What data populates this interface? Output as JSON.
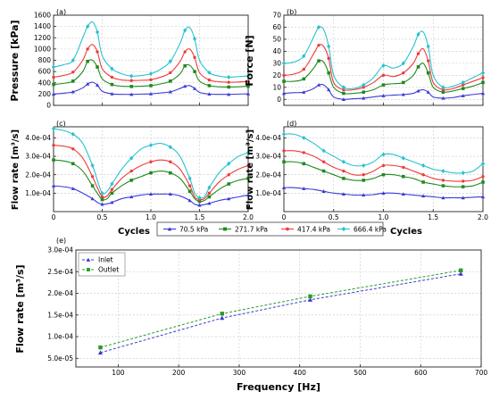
{
  "colors": {
    "s70": "#3a3ad6",
    "s271": "#1f8a1f",
    "s417": "#f03a3a",
    "s666": "#27c3cf",
    "grid": "#c8c8c8",
    "inlet": "#3a3ad6",
    "outlet": "#2a9a2a"
  },
  "series_legend": [
    {
      "key": "s70",
      "label": "70.5 kPa",
      "marker": "triangle"
    },
    {
      "key": "s271",
      "label": "271.7 kPa",
      "marker": "square"
    },
    {
      "key": "s417",
      "label": "417.4 kPa",
      "marker": "circle"
    },
    {
      "key": "s666",
      "label": "666.4 kPa",
      "marker": "diamond"
    }
  ],
  "chart_data": [
    {
      "id": "a",
      "panel_label": "(a)",
      "type": "line",
      "xlabel": "",
      "ylabel": "Pressure [kPa]",
      "xlim": [
        0,
        2
      ],
      "ylim": [
        0,
        1600
      ],
      "xticks": [
        "0",
        "0.5",
        "1.0",
        "1.5",
        "2.0"
      ],
      "xtick_values": [
        0,
        0.5,
        1,
        1.5,
        2
      ],
      "show_xticklabels": false,
      "yticks": [
        "0",
        "200",
        "400",
        "600",
        "800",
        "1000",
        "1200",
        "1400",
        "1600"
      ],
      "ytick_values": [
        0,
        200,
        400,
        600,
        800,
        1000,
        1200,
        1400,
        1600
      ],
      "grid": true,
      "x": [
        0,
        0.1,
        0.2,
        0.3,
        0.35,
        0.4,
        0.45,
        0.5,
        0.6,
        0.7,
        0.8,
        0.9,
        1.0,
        1.1,
        1.2,
        1.3,
        1.35,
        1.4,
        1.45,
        1.5,
        1.6,
        1.7,
        1.8,
        1.9,
        2.0
      ],
      "series": [
        {
          "key": "s70",
          "values": [
            200,
            215,
            240,
            310,
            380,
            410,
            360,
            250,
            205,
            195,
            195,
            200,
            205,
            220,
            240,
            300,
            340,
            350,
            300,
            230,
            200,
            195,
            195,
            200,
            205
          ]
        },
        {
          "key": "s271",
          "values": [
            370,
            390,
            430,
            600,
            780,
            800,
            680,
            470,
            370,
            340,
            335,
            340,
            350,
            380,
            430,
            560,
            700,
            710,
            600,
            430,
            350,
            330,
            325,
            330,
            340
          ]
        },
        {
          "key": "s417",
          "values": [
            500,
            530,
            590,
            800,
            1000,
            1080,
            950,
            650,
            500,
            450,
            440,
            445,
            455,
            500,
            580,
            780,
            950,
            1000,
            850,
            580,
            450,
            420,
            410,
            415,
            425
          ]
        },
        {
          "key": "s666",
          "values": [
            680,
            720,
            800,
            1200,
            1400,
            1480,
            1300,
            880,
            650,
            560,
            520,
            530,
            560,
            640,
            780,
            1100,
            1330,
            1380,
            1180,
            800,
            580,
            520,
            500,
            510,
            520
          ]
        }
      ]
    },
    {
      "id": "b",
      "panel_label": "(b)",
      "type": "line",
      "xlabel": "",
      "ylabel": "Force [N]",
      "xlim": [
        0,
        2
      ],
      "ylim": [
        -5,
        70
      ],
      "xticks": [
        "0",
        "0.5",
        "1.0",
        "1.5",
        "2.0"
      ],
      "xtick_values": [
        0,
        0.5,
        1,
        1.5,
        2
      ],
      "show_xticklabels": false,
      "yticks": [
        "0",
        "10",
        "20",
        "30",
        "40",
        "50",
        "60",
        "70"
      ],
      "ytick_values": [
        0,
        10,
        20,
        30,
        40,
        50,
        60,
        70
      ],
      "grid": true,
      "x": [
        0,
        0.1,
        0.2,
        0.3,
        0.35,
        0.4,
        0.45,
        0.5,
        0.6,
        0.7,
        0.8,
        0.9,
        1.0,
        1.1,
        1.2,
        1.3,
        1.35,
        1.4,
        1.45,
        1.5,
        1.6,
        1.7,
        1.8,
        1.9,
        2.0
      ],
      "series": [
        {
          "key": "s70",
          "values": [
            5,
            5.5,
            6,
            9,
            12,
            12,
            8,
            2,
            0,
            0.5,
            1,
            2,
            3,
            3.5,
            4,
            5,
            7,
            8,
            6,
            2,
            1,
            1.5,
            3,
            4,
            5
          ]
        },
        {
          "key": "s271",
          "values": [
            15,
            15,
            17,
            26,
            32,
            31,
            22,
            10,
            5,
            5,
            6,
            8,
            12,
            13,
            14,
            20,
            27,
            30,
            22,
            10,
            6,
            7,
            9,
            11,
            14
          ]
        },
        {
          "key": "s417",
          "values": [
            20,
            21,
            25,
            38,
            45,
            44,
            34,
            14,
            8,
            8,
            10,
            14,
            20,
            19,
            22,
            30,
            38,
            42,
            32,
            14,
            8,
            9,
            12,
            15,
            18
          ]
        },
        {
          "key": "s666",
          "values": [
            30,
            31,
            36,
            52,
            60,
            58,
            44,
            20,
            10,
            9,
            12,
            18,
            28,
            26,
            30,
            44,
            54,
            56,
            44,
            20,
            10,
            11,
            14,
            18,
            22
          ]
        }
      ]
    },
    {
      "id": "c",
      "panel_label": "(c)",
      "type": "line",
      "xlabel": "",
      "ylabel": "Flow rate [m³/s]",
      "xlim": [
        0,
        2
      ],
      "ylim": [
        0,
        0.00046
      ],
      "xticks": [
        "0",
        "0.5",
        "1.0",
        "1.5",
        "2.0"
      ],
      "xtick_values": [
        0,
        0.5,
        1,
        1.5,
        2
      ],
      "show_xticklabels": true,
      "yticks": [
        "1.0e-04",
        "2.0e-04",
        "3.0e-04",
        "4.0e-04"
      ],
      "ytick_values": [
        0.0001,
        0.0002,
        0.0003,
        0.0004
      ],
      "grid": true,
      "x": [
        0,
        0.1,
        0.2,
        0.3,
        0.4,
        0.45,
        0.5,
        0.55,
        0.6,
        0.7,
        0.8,
        0.9,
        1.0,
        1.1,
        1.2,
        1.3,
        1.4,
        1.45,
        1.5,
        1.55,
        1.6,
        1.7,
        1.8,
        1.9,
        2.0
      ],
      "series": [
        {
          "key": "s70",
          "values": [
            0.00014,
            0.000135,
            0.000125,
            0.0001,
            7e-05,
            5e-05,
            4e-05,
            4.2e-05,
            5e-05,
            7e-05,
            8e-05,
            9e-05,
            9.5e-05,
            9.5e-05,
            9.5e-05,
            8.5e-05,
            6e-05,
            4e-05,
            3.5e-05,
            3.8e-05,
            4.5e-05,
            6e-05,
            7e-05,
            8e-05,
            9e-05
          ]
        },
        {
          "key": "s271",
          "values": [
            0.00028,
            0.000275,
            0.00026,
            0.00022,
            0.00014,
            0.0001,
            6.5e-05,
            7e-05,
            0.0001,
            0.00014,
            0.00017,
            0.00019,
            0.00021,
            0.00022,
            0.00021,
            0.00018,
            0.00011,
            7e-05,
            5.5e-05,
            6e-05,
            8e-05,
            0.00012,
            0.00015,
            0.00017,
            0.00018
          ]
        },
        {
          "key": "s417",
          "values": [
            0.00036,
            0.000355,
            0.00034,
            0.00029,
            0.00019,
            0.00013,
            8e-05,
            8.5e-05,
            0.00012,
            0.00018,
            0.00022,
            0.00025,
            0.00027,
            0.00028,
            0.00027,
            0.00023,
            0.00014,
            8e-05,
            6.5e-05,
            7e-05,
            0.0001,
            0.00016,
            0.0002,
            0.00023,
            0.00025
          ]
        },
        {
          "key": "s666",
          "values": [
            0.00045,
            0.00044,
            0.00042,
            0.00037,
            0.00025,
            0.00017,
            0.0001,
            0.00011,
            0.00015,
            0.00023,
            0.00029,
            0.00034,
            0.00036,
            0.00037,
            0.00035,
            0.0003,
            0.00018,
            0.0001,
            7.5e-05,
            8e-05,
            0.00013,
            0.00021,
            0.00026,
            0.0003,
            0.00032
          ]
        }
      ]
    },
    {
      "id": "d",
      "panel_label": "(d)",
      "type": "line",
      "xlabel": "",
      "ylabel": "Flow rate [m³/s]",
      "xlim": [
        0,
        2
      ],
      "ylim": [
        0,
        0.00046
      ],
      "xticks": [
        "0",
        "0.5",
        "1.0",
        "1.5",
        "2.0"
      ],
      "xtick_values": [
        0,
        0.5,
        1,
        1.5,
        2
      ],
      "show_xticklabels": true,
      "yticks": [
        "1.0e-04",
        "2.0e-04",
        "3.0e-04",
        "4.0e-04"
      ],
      "ytick_values": [
        0.0001,
        0.0002,
        0.0003,
        0.0004
      ],
      "grid": true,
      "x": [
        0,
        0.1,
        0.2,
        0.3,
        0.4,
        0.5,
        0.6,
        0.7,
        0.8,
        0.9,
        1.0,
        1.1,
        1.2,
        1.3,
        1.4,
        1.5,
        1.6,
        1.7,
        1.8,
        1.9,
        2.0
      ],
      "series": [
        {
          "key": "s70",
          "values": [
            0.00013,
            0.00013,
            0.000125,
            0.00012,
            0.00011,
            0.0001,
            9.5e-05,
            9e-05,
            9e-05,
            9.2e-05,
            0.0001,
            0.0001,
            9.5e-05,
            9e-05,
            8.5e-05,
            8e-05,
            7.5e-05,
            7.5e-05,
            7.5e-05,
            7.8e-05,
            8e-05
          ]
        },
        {
          "key": "s271",
          "values": [
            0.00027,
            0.00027,
            0.00026,
            0.00024,
            0.00022,
            0.0002,
            0.00018,
            0.00017,
            0.00017,
            0.00018,
            0.0002,
            0.0002,
            0.00019,
            0.00018,
            0.00016,
            0.00015,
            0.00014,
            0.000135,
            0.000135,
            0.00014,
            0.00016
          ]
        },
        {
          "key": "s417",
          "values": [
            0.00033,
            0.00033,
            0.00032,
            0.0003,
            0.00027,
            0.00024,
            0.00022,
            0.0002,
            0.0002,
            0.00022,
            0.00025,
            0.00025,
            0.00024,
            0.00022,
            0.0002,
            0.00018,
            0.00017,
            0.000165,
            0.000165,
            0.00017,
            0.00019
          ]
        },
        {
          "key": "s666",
          "values": [
            0.00042,
            0.00042,
            0.0004,
            0.00037,
            0.00033,
            0.0003,
            0.00027,
            0.00025,
            0.00025,
            0.00027,
            0.00031,
            0.00031,
            0.00029,
            0.00027,
            0.00025,
            0.00023,
            0.00022,
            0.00021,
            0.00021,
            0.00022,
            0.00026
          ]
        }
      ]
    },
    {
      "id": "e",
      "panel_label": "(e)",
      "type": "line",
      "xlabel": "Frequency [Hz]",
      "ylabel": "Flow rate [m³/s]",
      "xlim": [
        30,
        700
      ],
      "ylim": [
        3e-05,
        0.0003
      ],
      "xticks": [
        "100",
        "200",
        "300",
        "400",
        "500",
        "600",
        "700"
      ],
      "xtick_values": [
        100,
        200,
        300,
        400,
        500,
        600,
        700
      ],
      "show_xticklabels": true,
      "yticks": [
        "5.0e-05",
        "1.0e-04",
        "1.5e-04",
        "2.0e-04",
        "2.5e-04",
        "3.0e-04"
      ],
      "ytick_values": [
        5e-05,
        0.0001,
        0.00015,
        0.0002,
        0.00025,
        0.0003
      ],
      "grid": true,
      "legend_position": "top-left",
      "x": [
        70.5,
        271.7,
        417.4,
        666.4
      ],
      "series": [
        {
          "key": "inlet",
          "name": "Inlet",
          "marker": "triangle",
          "values": [
            6.3e-05,
            0.000143,
            0.000185,
            0.000245
          ]
        },
        {
          "key": "outlet",
          "name": "Outlet",
          "marker": "square",
          "values": [
            7.5e-05,
            0.000153,
            0.000193,
            0.000253
          ]
        }
      ]
    }
  ],
  "shared_xlabel": "Cycles"
}
